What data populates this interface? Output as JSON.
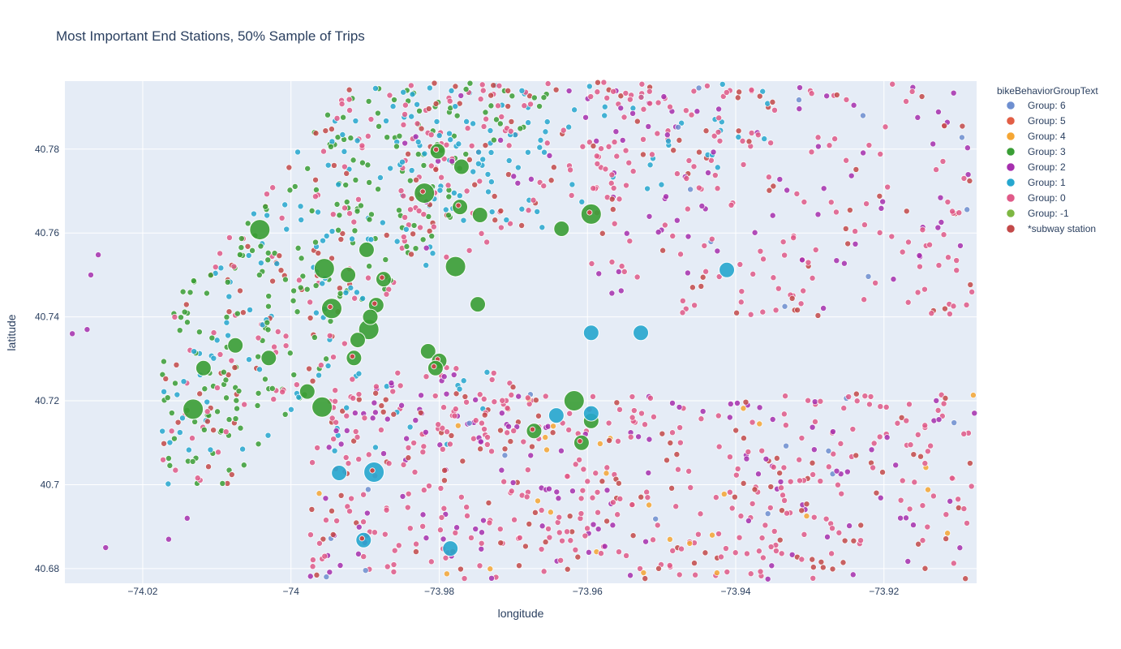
{
  "chart_data": {
    "type": "scatter",
    "title": "Most Important End Stations, 50% Sample of Trips",
    "xlabel": "longitude",
    "ylabel": "latitude",
    "xlim": [
      -74.0305,
      -73.9075
    ],
    "ylim": [
      40.6765,
      40.7962
    ],
    "x_ticks": [
      -74.02,
      -74.0,
      -73.98,
      -73.96,
      -73.94,
      -73.92
    ],
    "x_tick_labels": [
      "−74.02",
      "−74",
      "−73.98",
      "−73.96",
      "−73.94",
      "−73.92"
    ],
    "y_ticks": [
      40.68,
      40.7,
      40.72,
      40.74,
      40.76,
      40.78
    ],
    "y_tick_labels": [
      "40.68",
      "40.7",
      "40.72",
      "40.74",
      "40.76",
      "40.78"
    ],
    "grid": true,
    "legend": {
      "title": "bikeBehaviorGroupText",
      "placement": "top-right-outside",
      "entries": [
        {
          "name": "Group: 6",
          "color": "#6e8fd0"
        },
        {
          "name": "Group: 5",
          "color": "#e25e45"
        },
        {
          "name": "Group: 4",
          "color": "#f5a634"
        },
        {
          "name": "Group: 3",
          "color": "#3a9e35"
        },
        {
          "name": "Group: 2",
          "color": "#a62fae"
        },
        {
          "name": "Group: 1",
          "color": "#26a7cf"
        },
        {
          "name": "Group: 0",
          "color": "#e05a88"
        },
        {
          "name": "Group: -1",
          "color": "#7eb742"
        },
        {
          "name": "*subway station",
          "color": "#c34949"
        }
      ]
    },
    "series": [
      {
        "name": "Group: 3",
        "color": "#3a9e35",
        "points": [
          {
            "x": -74.0132,
            "y": 40.718,
            "size": "large"
          },
          {
            "x": -74.0042,
            "y": 40.7608,
            "size": "large"
          },
          {
            "x": -73.9958,
            "y": 40.7185,
            "size": "large"
          },
          {
            "x": -73.9945,
            "y": 40.742,
            "size": "large"
          },
          {
            "x": -73.9955,
            "y": 40.7515,
            "size": "large"
          },
          {
            "x": -73.9895,
            "y": 40.737,
            "size": "large"
          },
          {
            "x": -73.982,
            "y": 40.7695,
            "size": "large"
          },
          {
            "x": -73.9778,
            "y": 40.752,
            "size": "large"
          },
          {
            "x": -73.9595,
            "y": 40.7645,
            "size": "large"
          },
          {
            "x": -73.9618,
            "y": 40.72,
            "size": "large"
          },
          {
            "x": -74.0118,
            "y": 40.7278,
            "size": "medium"
          },
          {
            "x": -74.0075,
            "y": 40.7332,
            "size": "medium"
          },
          {
            "x": -74.003,
            "y": 40.7302,
            "size": "medium"
          },
          {
            "x": -73.9978,
            "y": 40.7222,
            "size": "medium"
          },
          {
            "x": -73.9923,
            "y": 40.75,
            "size": "medium"
          },
          {
            "x": -73.9898,
            "y": 40.756,
            "size": "medium"
          },
          {
            "x": -73.9875,
            "y": 40.749,
            "size": "medium"
          },
          {
            "x": -73.9885,
            "y": 40.7428,
            "size": "medium"
          },
          {
            "x": -73.9893,
            "y": 40.74,
            "size": "medium"
          },
          {
            "x": -73.991,
            "y": 40.7345,
            "size": "medium"
          },
          {
            "x": -73.9915,
            "y": 40.7302,
            "size": "medium"
          },
          {
            "x": -73.9815,
            "y": 40.7318,
            "size": "medium"
          },
          {
            "x": -73.98,
            "y": 40.7295,
            "size": "medium"
          },
          {
            "x": -73.9805,
            "y": 40.7278,
            "size": "medium"
          },
          {
            "x": -73.9802,
            "y": 40.7795,
            "size": "medium"
          },
          {
            "x": -73.977,
            "y": 40.7758,
            "size": "medium"
          },
          {
            "x": -73.9772,
            "y": 40.7662,
            "size": "medium"
          },
          {
            "x": -73.9745,
            "y": 40.7643,
            "size": "medium"
          },
          {
            "x": -73.9748,
            "y": 40.743,
            "size": "medium"
          },
          {
            "x": -73.9635,
            "y": 40.761,
            "size": "medium"
          },
          {
            "x": -73.9672,
            "y": 40.7128,
            "size": "medium"
          },
          {
            "x": -73.9595,
            "y": 40.7152,
            "size": "medium"
          },
          {
            "x": -73.9608,
            "y": 40.71,
            "size": "medium"
          }
        ]
      },
      {
        "name": "Group: 1",
        "color": "#26a7cf",
        "points": [
          {
            "x": -73.9888,
            "y": 40.703,
            "size": "large"
          },
          {
            "x": -73.9935,
            "y": 40.7028,
            "size": "medium"
          },
          {
            "x": -73.9902,
            "y": 40.6868,
            "size": "medium"
          },
          {
            "x": -73.9785,
            "y": 40.6848,
            "size": "medium"
          },
          {
            "x": -73.9642,
            "y": 40.7165,
            "size": "medium"
          },
          {
            "x": -73.9595,
            "y": 40.717,
            "size": "medium"
          },
          {
            "x": -73.9595,
            "y": 40.7362,
            "size": "medium"
          },
          {
            "x": -73.9528,
            "y": 40.7362,
            "size": "medium"
          },
          {
            "x": -73.9412,
            "y": 40.7512,
            "size": "medium"
          }
        ]
      }
    ]
  }
}
